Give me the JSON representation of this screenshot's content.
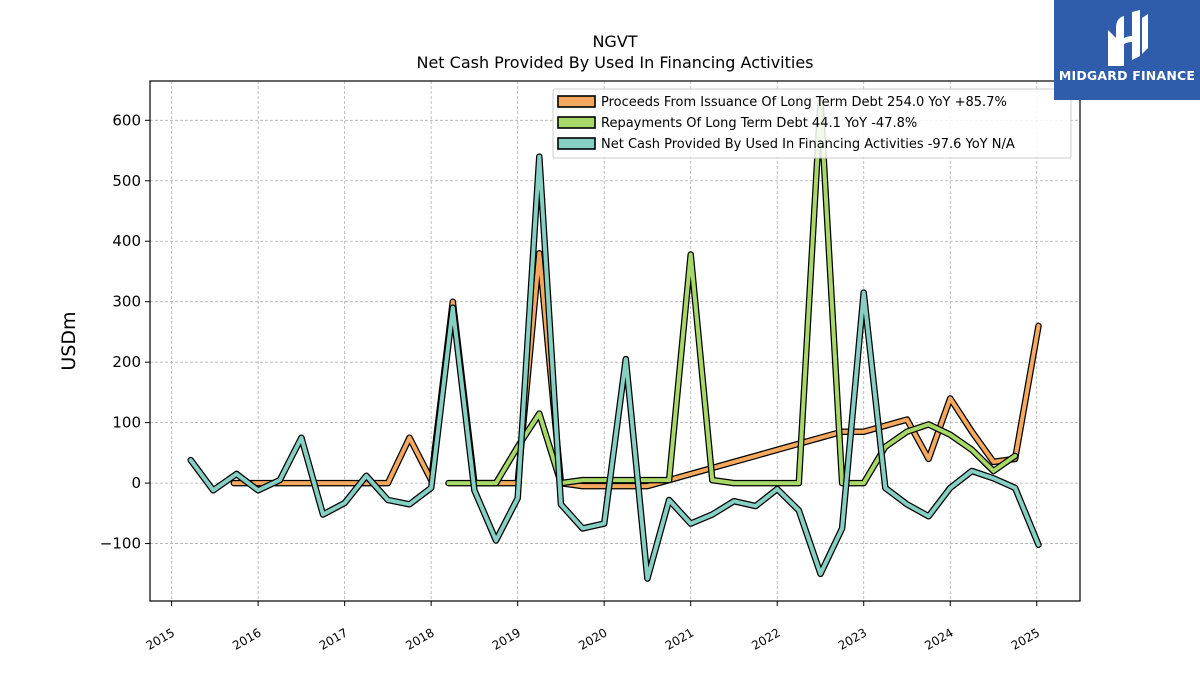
{
  "chart_data": {
    "type": "line",
    "title": "NGVT",
    "subtitle": "Net Cash Provided By Used In Financing Activities",
    "xlabel": "",
    "ylabel": "USDm",
    "xlim": [
      2014.75,
      2025.5
    ],
    "ylim": [
      -195,
      665
    ],
    "x_ticks": [
      2015,
      2016,
      2017,
      2018,
      2019,
      2020,
      2021,
      2022,
      2023,
      2024,
      2025
    ],
    "y_ticks": [
      -100,
      0,
      100,
      200,
      300,
      400,
      500,
      600
    ],
    "y_tick_labels": [
      "−100",
      "0",
      "100",
      "200",
      "300",
      "400",
      "500",
      "600"
    ],
    "grid": true,
    "legend_position": "top-right",
    "series": [
      {
        "name": "Proceeds From Issuance Of Long Term Debt  254.0 YoY +85.7%",
        "color": "#f5a95e",
        "points": [
          [
            2015.72,
            0
          ],
          [
            2016.0,
            0
          ],
          [
            2016.25,
            0
          ],
          [
            2016.5,
            0
          ],
          [
            2016.75,
            0
          ],
          [
            2017.0,
            0
          ],
          [
            2017.25,
            0
          ],
          [
            2017.5,
            0
          ],
          [
            2017.75,
            75
          ],
          [
            2018.0,
            5
          ],
          [
            2018.25,
            300
          ],
          [
            2018.5,
            0
          ],
          [
            2018.75,
            0
          ],
          [
            2019.0,
            0
          ],
          [
            2019.25,
            380
          ],
          [
            2019.5,
            0
          ],
          [
            2019.75,
            -5
          ],
          [
            2020.0,
            -5
          ],
          [
            2020.25,
            -5
          ],
          [
            2020.5,
            -5
          ],
          [
            2020.75,
            5
          ],
          [
            2021.0,
            15
          ],
          [
            2021.25,
            25
          ],
          [
            2021.5,
            35
          ],
          [
            2021.75,
            45
          ],
          [
            2022.0,
            55
          ],
          [
            2022.25,
            65
          ],
          [
            2022.5,
            75
          ],
          [
            2022.75,
            85
          ],
          [
            2023.0,
            85
          ],
          [
            2023.25,
            95
          ],
          [
            2023.5,
            105
          ],
          [
            2023.75,
            40
          ],
          [
            2024.0,
            140
          ],
          [
            2024.25,
            85
          ],
          [
            2024.5,
            35
          ],
          [
            2024.75,
            40
          ],
          [
            2025.02,
            260
          ]
        ]
      },
      {
        "name": "Repayments Of Long Term Debt  44.1 YoY -47.8%",
        "color": "#a7d868",
        "points": [
          [
            2018.2,
            0
          ],
          [
            2018.5,
            0
          ],
          [
            2018.75,
            0
          ],
          [
            2019.0,
            60
          ],
          [
            2019.25,
            115
          ],
          [
            2019.5,
            0
          ],
          [
            2019.75,
            5
          ],
          [
            2020.0,
            5
          ],
          [
            2020.25,
            5
          ],
          [
            2020.5,
            5
          ],
          [
            2020.75,
            5
          ],
          [
            2021.0,
            378
          ],
          [
            2021.25,
            5
          ],
          [
            2021.5,
            0
          ],
          [
            2021.75,
            0
          ],
          [
            2022.0,
            0
          ],
          [
            2022.25,
            0
          ],
          [
            2022.5,
            630
          ],
          [
            2022.75,
            0
          ],
          [
            2023.0,
            0
          ],
          [
            2023.25,
            60
          ],
          [
            2023.5,
            85
          ],
          [
            2023.75,
            97
          ],
          [
            2024.0,
            80
          ],
          [
            2024.25,
            55
          ],
          [
            2024.5,
            20
          ],
          [
            2024.75,
            45
          ]
        ]
      },
      {
        "name": "Net Cash Provided By Used In Financing Activities  -97.6 YoY N/A",
        "color": "#86cfc3",
        "points": [
          [
            2015.22,
            38
          ],
          [
            2015.48,
            -12
          ],
          [
            2015.75,
            15
          ],
          [
            2016.0,
            -12
          ],
          [
            2016.25,
            5
          ],
          [
            2016.5,
            75
          ],
          [
            2016.75,
            -52
          ],
          [
            2017.0,
            -33
          ],
          [
            2017.25,
            12
          ],
          [
            2017.5,
            -28
          ],
          [
            2017.75,
            -35
          ],
          [
            2018.0,
            -8
          ],
          [
            2018.25,
            290
          ],
          [
            2018.5,
            -12
          ],
          [
            2018.75,
            -95
          ],
          [
            2019.0,
            -25
          ],
          [
            2019.25,
            540
          ],
          [
            2019.5,
            -35
          ],
          [
            2019.75,
            -75
          ],
          [
            2020.0,
            -67
          ],
          [
            2020.25,
            205
          ],
          [
            2020.5,
            -158
          ],
          [
            2020.75,
            -28
          ],
          [
            2021.0,
            -67
          ],
          [
            2021.25,
            -52
          ],
          [
            2021.5,
            -30
          ],
          [
            2021.75,
            -38
          ],
          [
            2022.0,
            -10
          ],
          [
            2022.25,
            -45
          ],
          [
            2022.5,
            -150
          ],
          [
            2022.75,
            -75
          ],
          [
            2023.0,
            315
          ],
          [
            2023.25,
            -8
          ],
          [
            2023.5,
            -35
          ],
          [
            2023.75,
            -55
          ],
          [
            2024.0,
            -8
          ],
          [
            2024.25,
            20
          ],
          [
            2024.5,
            8
          ],
          [
            2024.75,
            -8
          ],
          [
            2025.02,
            -102
          ]
        ]
      }
    ]
  },
  "logo": {
    "text": "MIDGARD FINANCE",
    "background": "#2f5dab"
  }
}
